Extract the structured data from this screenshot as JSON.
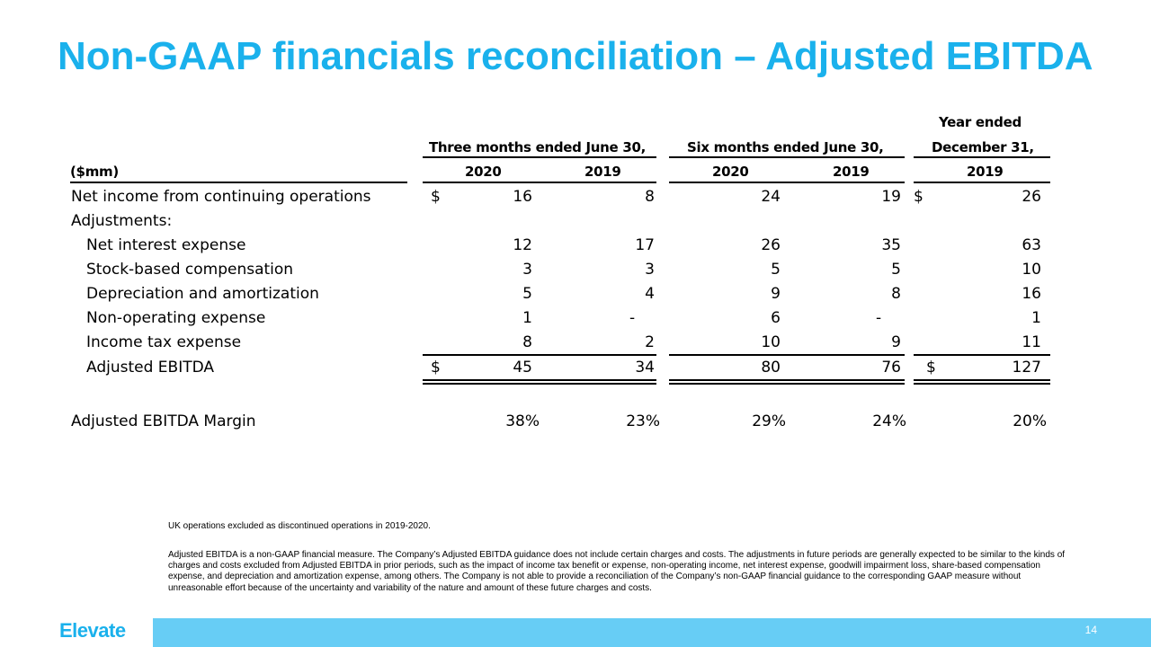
{
  "title": "Non-GAAP financials reconciliation – Adjusted EBITDA",
  "headers": {
    "unit": "($mm)",
    "group1": "Three months ended June 30,",
    "group2": "Six months ended June 30,",
    "group3_line1": "Year ended",
    "group3_line2": "December 31,",
    "years": [
      "2020",
      "2019",
      "2020",
      "2019",
      "2019"
    ]
  },
  "rows": [
    {
      "label": "Net income from continuing operations",
      "dollar1": "$",
      "v": [
        "16",
        "8",
        "24",
        "19",
        "26"
      ],
      "dollar5": "$"
    },
    {
      "label": "Adjustments:",
      "dollar1": "",
      "v": [
        "",
        "",
        "",
        "",
        ""
      ],
      "dollar5": ""
    },
    {
      "label": "Net interest expense",
      "dollar1": "",
      "v": [
        "12",
        "17",
        "26",
        "35",
        "63"
      ],
      "dollar5": ""
    },
    {
      "label": "Stock-based compensation",
      "dollar1": "",
      "v": [
        "3",
        "3",
        "5",
        "5",
        "10"
      ],
      "dollar5": ""
    },
    {
      "label": "Depreciation and amortization",
      "dollar1": "",
      "v": [
        "5",
        "4",
        "9",
        "8",
        "16"
      ],
      "dollar5": ""
    },
    {
      "label": "Non-operating expense",
      "dollar1": "",
      "v": [
        "1",
        "-",
        "6",
        "-",
        "1"
      ],
      "dollar5": ""
    },
    {
      "label": "Income tax expense",
      "dollar1": "",
      "v": [
        "8",
        "2",
        "10",
        "9",
        "11"
      ],
      "dollar5": ""
    },
    {
      "label": "Adjusted EBITDA",
      "dollar1": "$",
      "v": [
        "45",
        "34",
        "80",
        "76",
        "127"
      ],
      "dollar5": "$"
    }
  ],
  "margin": {
    "label": "Adjusted EBITDA Margin",
    "v": [
      "38%",
      "23%",
      "29%",
      "24%",
      "20%"
    ]
  },
  "notes": {
    "note1": "UK operations excluded as discontinued operations in 2019-2020.",
    "note2": "Adjusted EBITDA is a non-GAAP financial measure. The Company’s Adjusted EBITDA guidance does not include certain charges and costs. The adjustments in future periods are generally expected to be similar to the kinds of charges and costs excluded from Adjusted EBITDA in prior periods, such as the impact of income tax benefit or expense, non-operating income, net interest expense, goodwill impairment loss, share-based compensation expense, and depreciation and amortization expense, among others. The Company is not able to provide a reconciliation of the Company’s non-GAAP financial guidance to the corresponding GAAP measure without unreasonable effort because of the uncertainty and variability of the nature and amount of these future charges and costs."
  },
  "footer": {
    "logo": "Elevate",
    "page_number": "14"
  },
  "colors": {
    "accent": "#1ab1ec",
    "footer_bar": "#67cdf5"
  }
}
